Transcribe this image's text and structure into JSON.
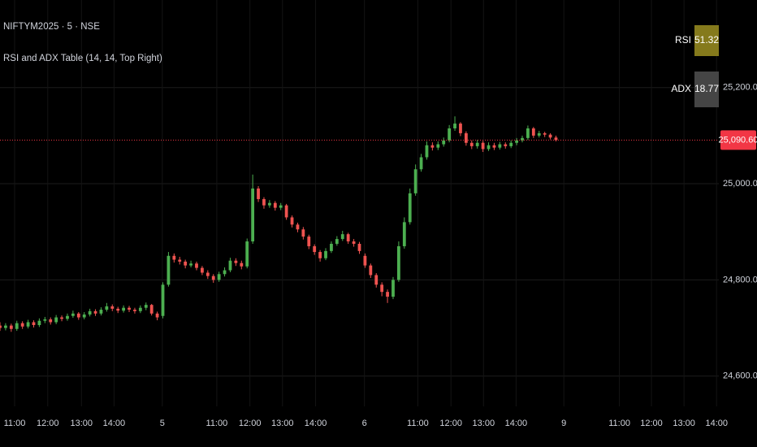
{
  "chart_data": {
    "type": "candlestick",
    "title": "NIFTYM2025 · 5 · NSE",
    "subtitle": "RSI and ADX Table (14, 14, Top Right)",
    "up_color": "#4caf50",
    "down_color": "#ef5350",
    "grid": true,
    "xlim": [
      0,
      128
    ],
    "ylim": [
      24537,
      25382
    ],
    "xticks": [
      {
        "value": 2.6,
        "label": "11:00"
      },
      {
        "value": 8.5,
        "label": "12:00"
      },
      {
        "value": 14.5,
        "label": "13:00"
      },
      {
        "value": 20.3,
        "label": "14:00"
      },
      {
        "value": 28.9,
        "label": "5"
      },
      {
        "value": 38.6,
        "label": "11:00"
      },
      {
        "value": 44.5,
        "label": "12:00"
      },
      {
        "value": 50.3,
        "label": "13:00"
      },
      {
        "value": 56.2,
        "label": "14:00"
      },
      {
        "value": 64.9,
        "label": "6"
      },
      {
        "value": 74.4,
        "label": "11:00"
      },
      {
        "value": 80.3,
        "label": "12:00"
      },
      {
        "value": 86.1,
        "label": "13:00"
      },
      {
        "value": 91.9,
        "label": "14:00"
      },
      {
        "value": 100.4,
        "label": "9"
      },
      {
        "value": 110.3,
        "label": "11:00"
      },
      {
        "value": 116,
        "label": "12:00"
      },
      {
        "value": 121.8,
        "label": "13:00"
      },
      {
        "value": 127.6,
        "label": "14:00"
      }
    ],
    "yticks": [
      {
        "value": 24600,
        "label": "24,600.00"
      },
      {
        "value": 24800,
        "label": "24,800.00"
      },
      {
        "value": 25000,
        "label": "25,000.00"
      },
      {
        "value": 25200,
        "label": "25,200.00"
      }
    ],
    "last_price": {
      "value": 25090.6,
      "label": "25,090.60",
      "color": "#f23645"
    },
    "indicator_table": [
      {
        "name": "RSI",
        "value": "51.32",
        "color": "#857a1c"
      },
      {
        "name": "ADX",
        "value": "18.77",
        "color": "#454545"
      }
    ],
    "x": [
      0,
      1,
      2,
      3,
      4,
      5,
      6,
      7,
      8,
      9,
      10,
      11,
      12,
      13,
      14,
      15,
      16,
      17,
      18,
      19,
      20,
      21,
      22,
      23,
      24,
      25,
      26,
      27,
      28,
      29,
      30,
      31,
      32,
      33,
      34,
      35,
      36,
      37,
      38,
      39,
      40,
      41,
      42,
      43,
      44,
      45,
      46,
      47,
      48,
      49,
      50,
      51,
      52,
      53,
      54,
      55,
      56,
      57,
      58,
      59,
      60,
      61,
      62,
      63,
      64,
      65,
      66,
      67,
      68,
      69,
      70,
      71,
      72,
      73,
      74,
      75,
      76,
      77,
      78,
      79,
      80,
      81,
      82,
      83,
      84,
      85,
      86,
      87,
      88,
      89,
      90,
      91,
      92,
      93,
      94,
      95,
      96,
      97,
      98,
      99
    ],
    "open": [
      24705,
      24700,
      24705,
      24698,
      24710,
      24703,
      24712,
      24706,
      24715,
      24718,
      24712,
      24722,
      24719,
      24725,
      24730,
      24722,
      24728,
      24735,
      24730,
      24738,
      24745,
      24740,
      24736,
      24742,
      24738,
      24735,
      24742,
      24748,
      24730,
      24725,
      24790,
      24850,
      24842,
      24838,
      24830,
      24834,
      24825,
      24815,
      24808,
      24800,
      24812,
      24820,
      24840,
      24835,
      24828,
      24880,
      24990,
      24968,
      24955,
      24960,
      24950,
      24955,
      24930,
      24915,
      24905,
      24890,
      24870,
      24858,
      24845,
      24860,
      24875,
      24885,
      24895,
      24880,
      24875,
      24850,
      24830,
      24810,
      24790,
      24775,
      24765,
      24800,
      24870,
      24920,
      24980,
      25030,
      25055,
      25080,
      25075,
      25082,
      25090,
      25115,
      25125,
      25105,
      25085,
      25078,
      25085,
      25072,
      25080,
      25075,
      25082,
      25078,
      25085,
      25090,
      25095,
      25115,
      25100,
      25105,
      25102,
      25096
    ],
    "high": [
      24712,
      24710,
      24709,
      24715,
      24714,
      24717,
      24716,
      24720,
      24723,
      24722,
      24727,
      24726,
      24730,
      24736,
      24733,
      24733,
      24740,
      24739,
      24743,
      24752,
      24749,
      24744,
      24747,
      24746,
      24742,
      24747,
      24753,
      24750,
      24734,
      24795,
      24858,
      24855,
      24848,
      24842,
      24840,
      24838,
      24829,
      24820,
      24812,
      24817,
      24826,
      24846,
      24845,
      24840,
      24886,
      25019,
      24995,
      24972,
      24966,
      24964,
      24960,
      24958,
      24934,
      24919,
      24910,
      24894,
      24874,
      24862,
      24866,
      24880,
      24891,
      24902,
      24898,
      24885,
      24879,
      24855,
      24834,
      24814,
      24795,
      24780,
      24806,
      24880,
      24930,
      24990,
      25040,
      25062,
      25088,
      25086,
      25088,
      25096,
      25122,
      25140,
      25128,
      25109,
      25090,
      25091,
      25089,
      25086,
      25085,
      25087,
      25086,
      25090,
      25095,
      25100,
      25121,
      25118,
      25110,
      25108,
      25105,
      25100
    ],
    "low": [
      24694,
      24695,
      24692,
      24694,
      24698,
      24699,
      24701,
      24702,
      24710,
      24707,
      24708,
      24714,
      24715,
      24721,
      24717,
      24718,
      24724,
      24725,
      24726,
      24734,
      24735,
      24731,
      24732,
      24733,
      24730,
      24731,
      24737,
      24726,
      24716,
      24720,
      24786,
      24836,
      24832,
      24824,
      24826,
      24820,
      24810,
      24802,
      24794,
      24796,
      24807,
      24816,
      24829,
      24822,
      24824,
      24875,
      24962,
      24948,
      24950,
      24944,
      24945,
      24925,
      24909,
      24899,
      24884,
      24864,
      24852,
      24838,
      24841,
      24856,
      24871,
      24881,
      24875,
      24869,
      24854,
      24825,
      24804,
      24784,
      24766,
      24752,
      24760,
      24796,
      24865,
      24915,
      24975,
      25025,
      25050,
      25069,
      25070,
      25077,
      25086,
      25110,
      25099,
      25079,
      25072,
      25073,
      25066,
      25068,
      25070,
      25071,
      25073,
      25074,
      25080,
      25086,
      25091,
      25095,
      25096,
      25097,
      25092,
      25088
    ],
    "close": [
      24700,
      24705,
      24698,
      24710,
      24703,
      24712,
      24706,
      24715,
      24718,
      24712,
      24722,
      24719,
      24725,
      24730,
      24722,
      24728,
      24735,
      24730,
      24738,
      24745,
      24740,
      24736,
      24742,
      24738,
      24735,
      24742,
      24748,
      24730,
      24722,
      24790,
      24850,
      24842,
      24838,
      24830,
      24834,
      24825,
      24815,
      24808,
      24800,
      24812,
      24820,
      24840,
      24835,
      24828,
      24880,
      24990,
      24968,
      24955,
      24960,
      24950,
      24955,
      24930,
      24915,
      24905,
      24890,
      24870,
      24858,
      24845,
      24860,
      24875,
      24885,
      24895,
      24880,
      24875,
      24860,
      24830,
      24810,
      24790,
      24775,
      24765,
      24800,
      24870,
      24920,
      24980,
      25030,
      25055,
      25080,
      25075,
      25082,
      25090,
      25115,
      25125,
      25105,
      25085,
      25078,
      25085,
      25072,
      25080,
      25075,
      25082,
      25078,
      25085,
      25090,
      25095,
      25115,
      25100,
      25105,
      25102,
      25096,
      25090.6
    ]
  }
}
